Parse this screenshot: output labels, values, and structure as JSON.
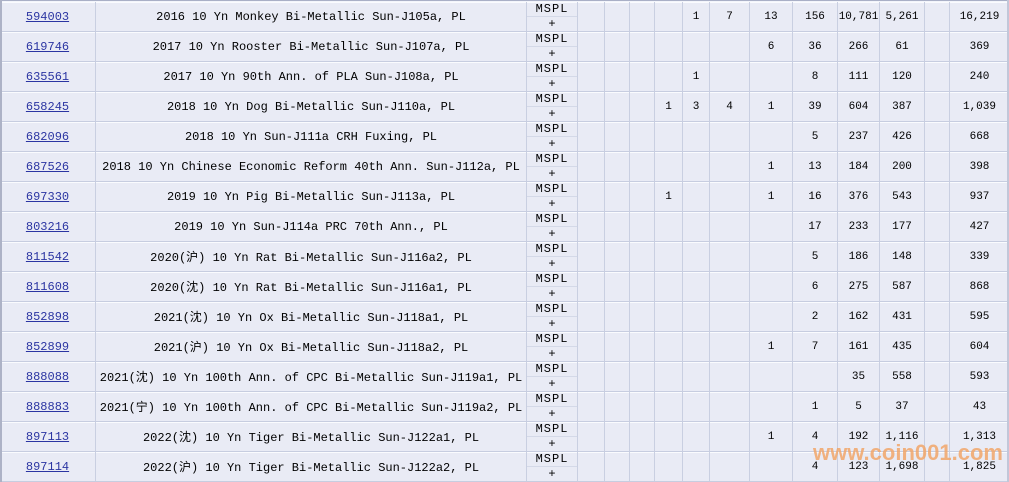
{
  "watermark": "www.coin001.com",
  "designation": {
    "label": "MSPL",
    "modifier": "+"
  },
  "colors": {
    "row_background": "#E9EBF5",
    "grid_line": "#C9CFE1",
    "link": "#2B35A2",
    "watermark": "#F1A668"
  },
  "table": {
    "rows": [
      {
        "id": "594003",
        "desc": "2016 10 Yn Monkey Bi-Metallic Sun-J105a, PL",
        "grades": [
          "",
          "",
          "",
          "",
          "1",
          "7",
          "13",
          "156",
          "10,781",
          "5,261",
          ""
        ],
        "total": "16,219"
      },
      {
        "id": "619746",
        "desc": "2017 10 Yn Rooster Bi-Metallic Sun-J107a, PL",
        "grades": [
          "",
          "",
          "",
          "",
          "",
          "",
          "6",
          "36",
          "266",
          "61",
          ""
        ],
        "total": "369"
      },
      {
        "id": "635561",
        "desc": "2017 10 Yn 90th Ann. of PLA Sun-J108a, PL",
        "grades": [
          "",
          "",
          "",
          "",
          "1",
          "",
          "",
          "8",
          "111",
          "120",
          ""
        ],
        "total": "240"
      },
      {
        "id": "658245",
        "desc": "2018 10 Yn Dog Bi-Metallic Sun-J110a, PL",
        "grades": [
          "",
          "",
          "",
          "1",
          "3",
          "4",
          "1",
          "39",
          "604",
          "387",
          ""
        ],
        "total": "1,039"
      },
      {
        "id": "682096",
        "desc": "2018 10 Yn Sun-J111a CRH Fuxing, PL",
        "grades": [
          "",
          "",
          "",
          "",
          "",
          "",
          "",
          "5",
          "237",
          "426",
          ""
        ],
        "total": "668"
      },
      {
        "id": "687526",
        "desc": "2018 10 Yn Chinese Economic Reform 40th Ann. Sun-J112a, PL",
        "grades": [
          "",
          "",
          "",
          "",
          "",
          "",
          "1",
          "13",
          "184",
          "200",
          ""
        ],
        "total": "398"
      },
      {
        "id": "697330",
        "desc": "2019 10 Yn Pig Bi-Metallic Sun-J113a, PL",
        "grades": [
          "",
          "",
          "",
          "1",
          "",
          "",
          "1",
          "16",
          "376",
          "543",
          ""
        ],
        "total": "937"
      },
      {
        "id": "803216",
        "desc": "2019 10 Yn Sun-J114a PRC 70th Ann., PL",
        "grades": [
          "",
          "",
          "",
          "",
          "",
          "",
          "",
          "17",
          "233",
          "177",
          ""
        ],
        "total": "427"
      },
      {
        "id": "811542",
        "desc": "2020(沪) 10 Yn Rat Bi-Metallic Sun-J116a2, PL",
        "grades": [
          "",
          "",
          "",
          "",
          "",
          "",
          "",
          "5",
          "186",
          "148",
          ""
        ],
        "total": "339"
      },
      {
        "id": "811608",
        "desc": "2020(沈) 10 Yn Rat Bi-Metallic Sun-J116a1, PL",
        "grades": [
          "",
          "",
          "",
          "",
          "",
          "",
          "",
          "6",
          "275",
          "587",
          ""
        ],
        "total": "868"
      },
      {
        "id": "852898",
        "desc": "2021(沈) 10 Yn Ox Bi-Metallic Sun-J118a1, PL",
        "grades": [
          "",
          "",
          "",
          "",
          "",
          "",
          "",
          "2",
          "162",
          "431",
          ""
        ],
        "total": "595"
      },
      {
        "id": "852899",
        "desc": "2021(沪) 10 Yn Ox Bi-Metallic Sun-J118a2, PL",
        "grades": [
          "",
          "",
          "",
          "",
          "",
          "",
          "1",
          "7",
          "161",
          "435",
          ""
        ],
        "total": "604"
      },
      {
        "id": "888088",
        "desc": "2021(沈) 10 Yn 100th Ann. of CPC Bi-Metallic Sun-J119a1, PL",
        "grades": [
          "",
          "",
          "",
          "",
          "",
          "",
          "",
          "",
          "35",
          "558",
          ""
        ],
        "total": "593"
      },
      {
        "id": "888883",
        "desc": "2021(宁) 10 Yn 100th Ann. of CPC Bi-Metallic Sun-J119a2, PL",
        "grades": [
          "",
          "",
          "",
          "",
          "",
          "",
          "",
          "1",
          "5",
          "37",
          ""
        ],
        "total": "43"
      },
      {
        "id": "897113",
        "desc": "2022(沈) 10 Yn Tiger Bi-Metallic Sun-J122a1, PL",
        "grades": [
          "",
          "",
          "",
          "",
          "",
          "",
          "1",
          "4",
          "192",
          "1,116",
          ""
        ],
        "total": "1,313"
      },
      {
        "id": "897114",
        "desc": "2022(沪) 10 Yn Tiger Bi-Metallic Sun-J122a2, PL",
        "grades": [
          "",
          "",
          "",
          "",
          "",
          "",
          "",
          "4",
          "123",
          "1,698",
          ""
        ],
        "total": "1,825"
      }
    ]
  }
}
